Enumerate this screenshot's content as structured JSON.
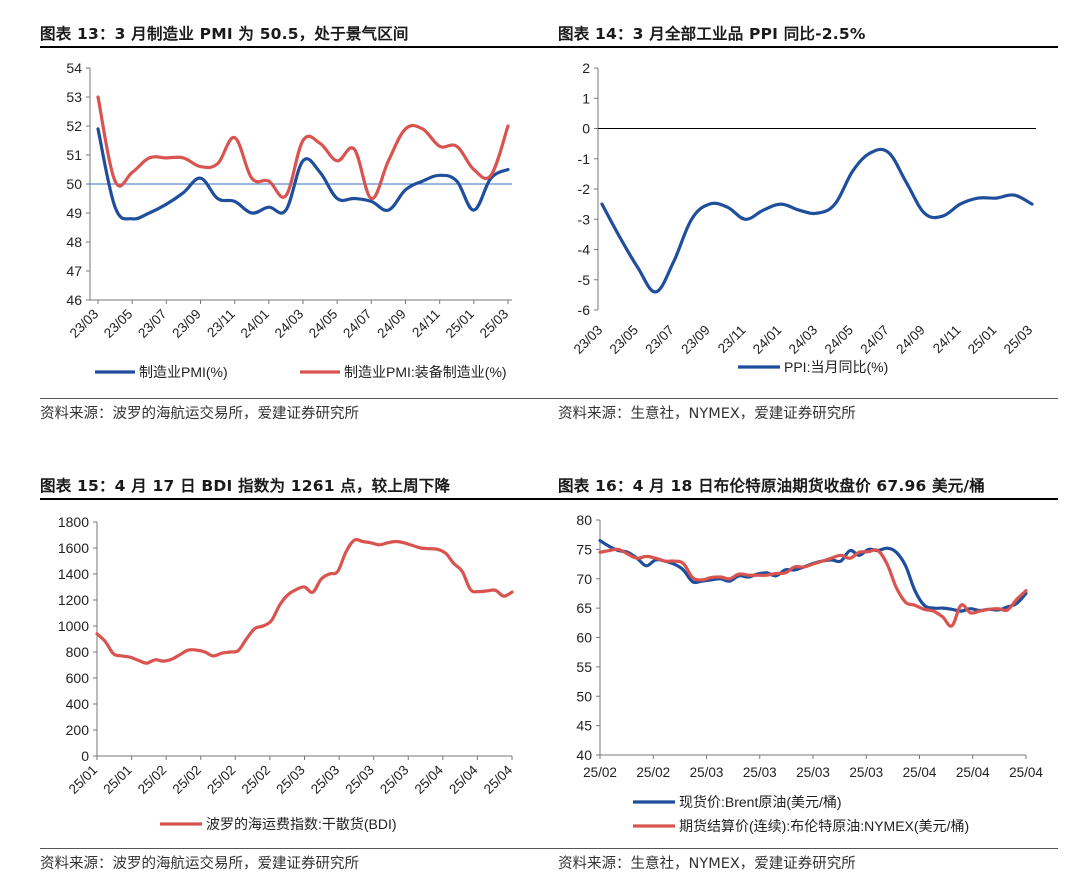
{
  "panels": [
    {
      "title": "图表 13：3 月制造业 PMI 为 50.5，处于景气区间",
      "source": "资料来源：波罗的海航运交易所，爱建证券研究所"
    },
    {
      "title": "图表 14：3 月全部工业品 PPI 同比-2.5%",
      "source": "资料来源：生意社，NYMEX，爱建证券研究所"
    },
    {
      "title": "图表 15：4 月 17 日 BDI 指数为 1261 点，较上周下降",
      "source": "资料来源：波罗的海航运交易所，爱建证券研究所"
    },
    {
      "title": "图表 16：4 月 18 日布伦特原油期货收盘价 67.96 美元/桶",
      "source": "资料来源：生意社，NYMEX，爱建证券研究所"
    }
  ],
  "chart_data": [
    {
      "type": "line",
      "ylim": [
        46,
        54
      ],
      "yticks": [
        46,
        47,
        48,
        49,
        50,
        51,
        52,
        53,
        54
      ],
      "xtick_labels": [
        "23/03",
        "23/05",
        "23/07",
        "23/09",
        "23/11",
        "24/01",
        "24/03",
        "24/05",
        "24/07",
        "24/09",
        "24/11",
        "25/01",
        "25/03"
      ],
      "x": [
        "23/03",
        "23/04",
        "23/05",
        "23/06",
        "23/07",
        "23/08",
        "23/09",
        "23/10",
        "23/11",
        "23/12",
        "24/01",
        "24/02",
        "24/03",
        "24/04",
        "24/05",
        "24/06",
        "24/07",
        "24/08",
        "24/09",
        "24/10",
        "24/11",
        "24/12",
        "25/01",
        "25/02",
        "25/03"
      ],
      "reference_line": 50,
      "series": [
        {
          "name": "制造业PMI(%)",
          "color": "#1f4e9c",
          "values": [
            51.9,
            49.2,
            48.8,
            49.0,
            49.3,
            49.7,
            50.2,
            49.5,
            49.4,
            49.0,
            49.2,
            49.1,
            50.8,
            50.4,
            49.5,
            49.5,
            49.4,
            49.1,
            49.8,
            50.1,
            50.3,
            50.1,
            49.1,
            50.2,
            50.5
          ]
        },
        {
          "name": "制造业PMI:装备制造业(%)",
          "color": "#d9534f",
          "values": [
            53.0,
            50.1,
            50.4,
            50.9,
            50.9,
            50.9,
            50.6,
            50.7,
            51.6,
            50.2,
            50.1,
            49.6,
            51.5,
            51.4,
            50.8,
            51.2,
            49.5,
            50.8,
            51.9,
            51.9,
            51.3,
            51.3,
            50.5,
            50.3,
            52.0
          ]
        }
      ]
    },
    {
      "type": "line",
      "ylim": [
        -6,
        2
      ],
      "yticks": [
        -6,
        -5,
        -4,
        -3,
        -2,
        -1,
        0,
        1,
        2
      ],
      "xtick_labels": [
        "23/03",
        "23/05",
        "23/07",
        "23/09",
        "23/11",
        "24/01",
        "24/03",
        "24/05",
        "24/07",
        "24/09",
        "24/11",
        "25/01",
        "25/03"
      ],
      "x": [
        "23/03",
        "23/04",
        "23/05",
        "23/06",
        "23/07",
        "23/08",
        "23/09",
        "23/10",
        "23/11",
        "23/12",
        "24/01",
        "24/02",
        "24/03",
        "24/04",
        "24/05",
        "24/06",
        "24/07",
        "24/08",
        "24/09",
        "24/10",
        "24/11",
        "24/12",
        "25/01",
        "25/02",
        "25/03"
      ],
      "reference_line": 0,
      "series": [
        {
          "name": "PPI:当月同比(%)",
          "color": "#1f4e9c",
          "values": [
            -2.5,
            -3.6,
            -4.6,
            -5.4,
            -4.4,
            -3.0,
            -2.5,
            -2.6,
            -3.0,
            -2.7,
            -2.5,
            -2.7,
            -2.8,
            -2.5,
            -1.4,
            -0.8,
            -0.8,
            -1.8,
            -2.8,
            -2.9,
            -2.5,
            -2.3,
            -2.3,
            -2.2,
            -2.5
          ]
        }
      ]
    },
    {
      "type": "line",
      "ylim": [
        0,
        1800
      ],
      "yticks": [
        0,
        200,
        400,
        600,
        800,
        1000,
        1200,
        1400,
        1600,
        1800
      ],
      "xtick_labels": [
        "25/01",
        "25/01",
        "25/02",
        "25/02",
        "25/02",
        "25/02",
        "25/03",
        "25/03",
        "25/03",
        "25/03",
        "25/04",
        "25/04",
        "25/04"
      ],
      "series": [
        {
          "name": "波罗的海运费指数:干散货(BDI)",
          "color": "#d9534f",
          "values": [
            940,
            880,
            785,
            770,
            760,
            735,
            715,
            740,
            730,
            745,
            780,
            815,
            815,
            800,
            770,
            790,
            800,
            810,
            900,
            980,
            1000,
            1040,
            1160,
            1240,
            1280,
            1300,
            1260,
            1360,
            1400,
            1420,
            1570,
            1660,
            1650,
            1640,
            1625,
            1640,
            1650,
            1640,
            1620,
            1600,
            1595,
            1590,
            1560,
            1480,
            1420,
            1280,
            1265,
            1270,
            1275,
            1230,
            1261
          ]
        }
      ]
    },
    {
      "type": "line",
      "ylim": [
        40,
        80
      ],
      "yticks": [
        40,
        45,
        50,
        55,
        60,
        65,
        70,
        75,
        80
      ],
      "xtick_labels": [
        "25/02",
        "25/02",
        "25/03",
        "25/03",
        "25/03",
        "25/03",
        "25/04",
        "25/04",
        "25/04"
      ],
      "series": [
        {
          "name": "现货价:Brent原油(美元/桶)",
          "color": "#1f4e9c",
          "values": [
            76.5,
            75.5,
            74.8,
            74.5,
            73.5,
            72.2,
            73.2,
            73.0,
            72.5,
            71.5,
            69.5,
            69.6,
            69.8,
            70.0,
            69.6,
            70.5,
            70.3,
            70.8,
            71.0,
            70.5,
            71.5,
            71.5,
            72.0,
            72.6,
            73.0,
            73.2,
            73.0,
            74.8,
            74.0,
            75.0,
            74.8,
            75.2,
            74.5,
            72.2,
            68.0,
            65.5,
            65.0,
            65.0,
            64.8,
            64.5,
            64.9,
            64.6,
            64.8,
            64.7,
            65.2,
            65.8,
            67.5
          ]
        },
        {
          "name": "期货结算价(连续):布伦特原油:NYMEX(美元/桶)",
          "color": "#d9534f",
          "values": [
            74.5,
            74.8,
            75.0,
            74.2,
            73.5,
            73.8,
            73.5,
            73.0,
            73.0,
            72.6,
            70.2,
            69.8,
            70.2,
            70.3,
            70.0,
            70.8,
            70.6,
            70.6,
            70.6,
            70.9,
            71.0,
            72.0,
            72.0,
            72.5,
            73.0,
            73.5,
            74.0,
            73.5,
            74.5,
            74.6,
            74.8,
            72.5,
            68.5,
            66.0,
            65.5,
            64.8,
            64.5,
            63.5,
            62.0,
            65.5,
            64.2,
            64.5,
            64.8,
            64.9,
            64.7,
            66.5,
            67.96
          ]
        }
      ]
    }
  ]
}
